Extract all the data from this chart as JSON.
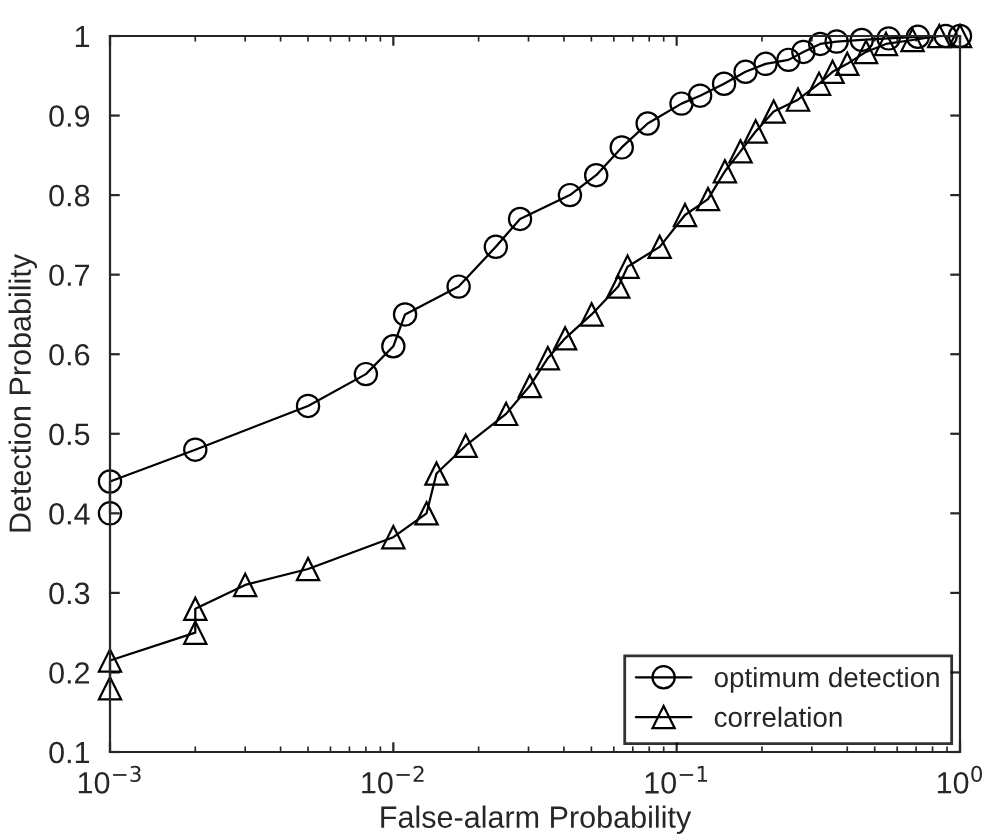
{
  "chart_data": {
    "type": "line",
    "xlabel": "False-alarm Probability",
    "ylabel": "Detection Probability",
    "log": "x",
    "xlim": [
      0.001,
      1
    ],
    "xticks": [
      {
        "value": 0.001,
        "label": "10$^{−3}$"
      },
      {
        "value": 0.01,
        "label": "10$^{−2}$"
      },
      {
        "value": 0.1,
        "label": "10$^{−1}$"
      },
      {
        "value": 1,
        "label": "10$^{0}$"
      }
    ],
    "ylim": [
      0.1,
      1
    ],
    "yticks": [
      0.1,
      0.2,
      0.3,
      0.4,
      0.5,
      0.6,
      0.7,
      0.8,
      0.9,
      1
    ],
    "grid": false,
    "legend": "bottom right",
    "series": [
      {
        "name": "optimum detection",
        "color": "#000000",
        "marker": "circle",
        "x": [
          0.001,
          0.001,
          0.002,
          0.005,
          0.008,
          0.01,
          0.011,
          0.017,
          0.023,
          0.028,
          0.042,
          0.052,
          0.064,
          0.079,
          0.104,
          0.121,
          0.147,
          0.175,
          0.206,
          0.248,
          0.28,
          0.321,
          0.367,
          0.45,
          0.56,
          0.71,
          0.89,
          1
        ],
        "values": [
          0.4,
          0.44,
          0.48,
          0.535,
          0.575,
          0.61,
          0.65,
          0.685,
          0.735,
          0.77,
          0.8,
          0.825,
          0.86,
          0.89,
          0.915,
          0.925,
          0.94,
          0.955,
          0.965,
          0.97,
          0.98,
          0.99,
          0.993,
          0.995,
          0.997,
          0.999,
          1,
          1
        ]
      },
      {
        "name": "correlation",
        "color": "#000000",
        "marker": "triangle",
        "x": [
          0.001,
          0.001,
          0.002,
          0.002,
          0.003,
          0.005,
          0.01,
          0.0131,
          0.0142,
          0.018,
          0.025,
          0.0303,
          0.0351,
          0.0404,
          0.0501,
          0.0622,
          0.0671,
          0.0871,
          0.107,
          0.129,
          0.148,
          0.168,
          0.19,
          0.22,
          0.268,
          0.318,
          0.355,
          0.4,
          0.466,
          0.548,
          0.68,
          0.845,
          1
        ],
        "values": [
          0.18,
          0.215,
          0.25,
          0.28,
          0.31,
          0.33,
          0.37,
          0.4,
          0.45,
          0.485,
          0.525,
          0.56,
          0.595,
          0.62,
          0.65,
          0.685,
          0.71,
          0.735,
          0.775,
          0.795,
          0.83,
          0.855,
          0.88,
          0.905,
          0.92,
          0.94,
          0.955,
          0.965,
          0.98,
          0.99,
          0.995,
          1,
          1
        ]
      }
    ]
  }
}
